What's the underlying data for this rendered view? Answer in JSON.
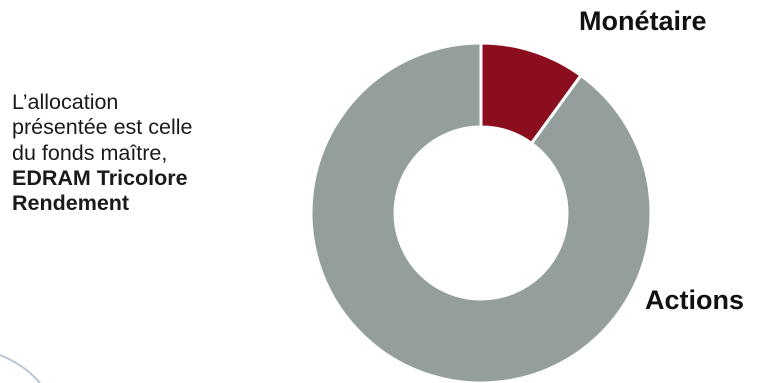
{
  "caption": {
    "line1": "L’allocation",
    "line2": "présentée est celle",
    "line3": "du fonds maître,",
    "bold_line1": "EDRAM Tricolore",
    "bold_line2": "Rendement"
  },
  "chart_data": {
    "type": "pie",
    "donut": true,
    "title": "",
    "categories": [
      "Monétaire",
      "Actions"
    ],
    "values": [
      10,
      90
    ],
    "colors": [
      "#8b0e1f",
      "#939e9d"
    ],
    "legend": "none"
  }
}
